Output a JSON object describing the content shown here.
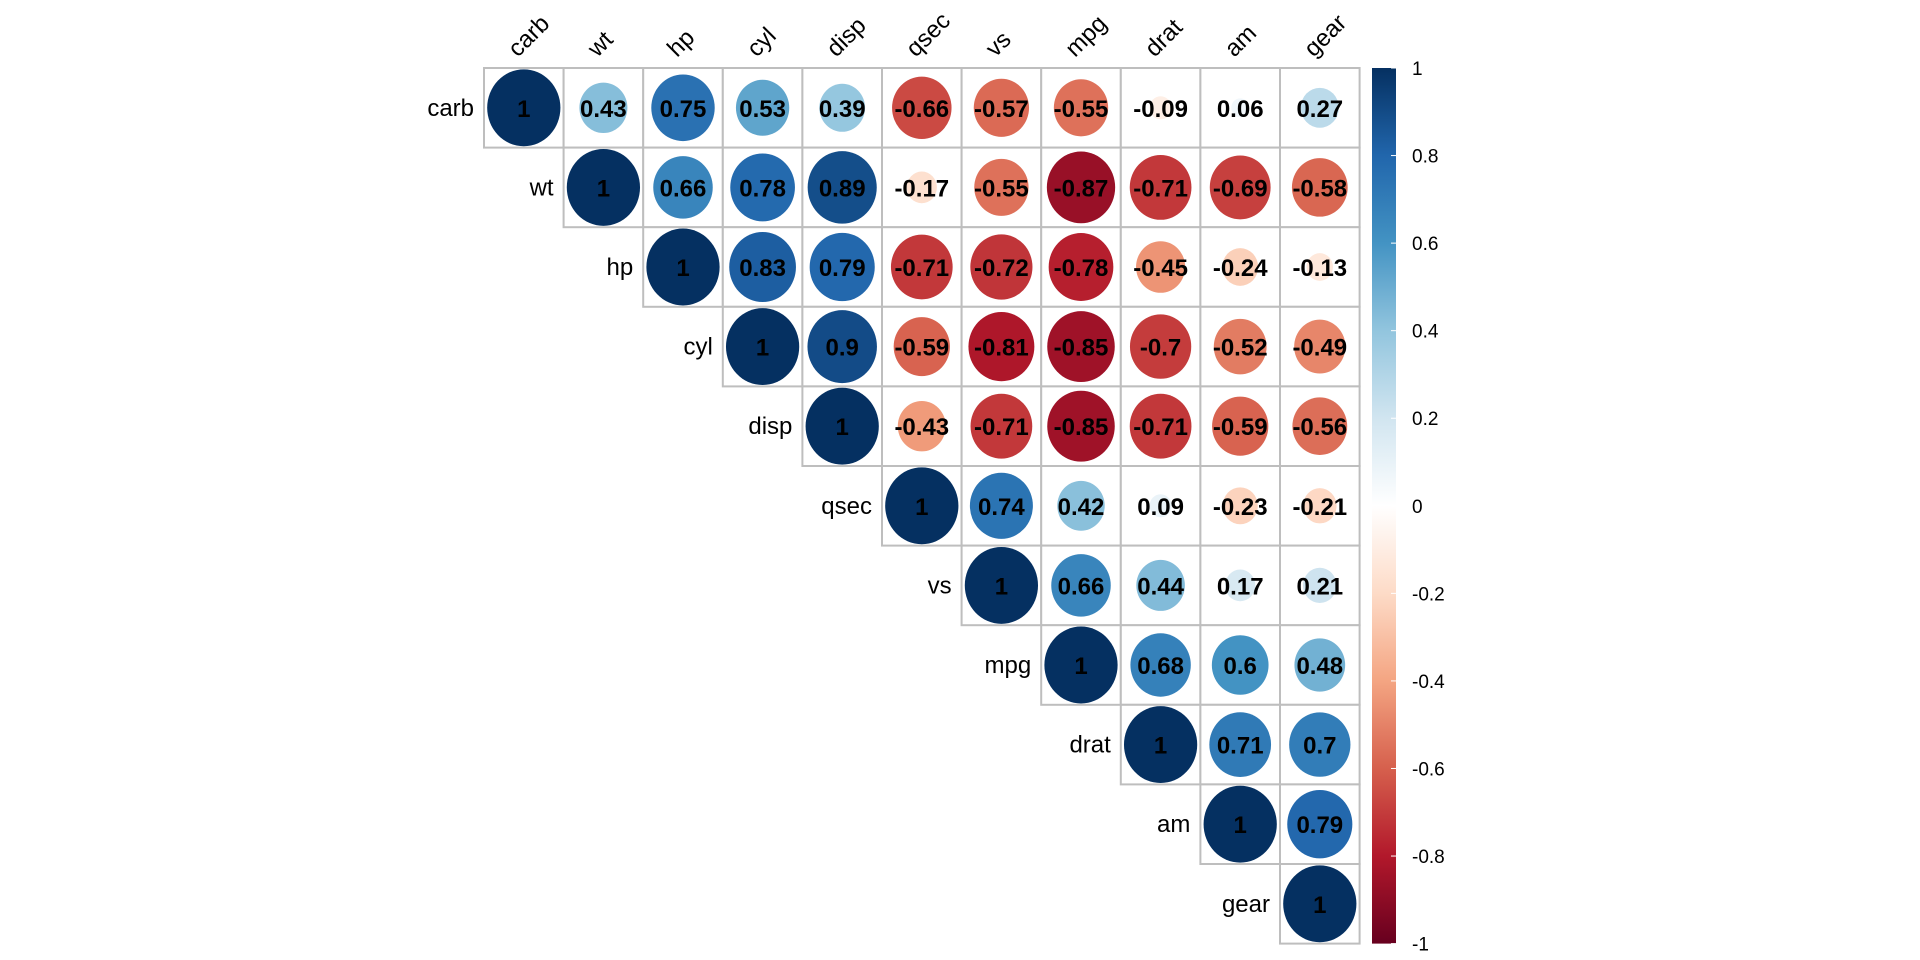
{
  "chart_data": {
    "type": "heatmap",
    "subtype": "corrplot-upper-circle",
    "variables": [
      "carb",
      "wt",
      "hp",
      "cyl",
      "disp",
      "qsec",
      "vs",
      "mpg",
      "drat",
      "am",
      "gear"
    ],
    "matrix_upper": [
      [
        1,
        0.43,
        0.75,
        0.53,
        0.39,
        -0.66,
        -0.57,
        -0.55,
        -0.09,
        0.06,
        0.27
      ],
      [
        1,
        0.66,
        0.78,
        0.89,
        -0.17,
        -0.55,
        -0.87,
        -0.71,
        -0.69,
        -0.58
      ],
      [
        1,
        0.83,
        0.79,
        -0.71,
        -0.72,
        -0.78,
        -0.45,
        -0.24,
        -0.13
      ],
      [
        1,
        0.9,
        -0.59,
        -0.81,
        -0.85,
        -0.7,
        -0.52,
        -0.49
      ],
      [
        1,
        -0.43,
        -0.71,
        -0.85,
        -0.71,
        -0.59,
        -0.56
      ],
      [
        1,
        0.74,
        0.42,
        0.09,
        -0.23,
        -0.21
      ],
      [
        1,
        0.66,
        0.44,
        0.17,
        0.21
      ],
      [
        1,
        0.68,
        0.6,
        0.48
      ],
      [
        1,
        0.71,
        0.7
      ],
      [
        1,
        0.79
      ],
      [
        1
      ]
    ],
    "colorbar": {
      "range": [
        -1,
        1
      ],
      "ticks": [
        "-1",
        "-0.8",
        "-0.6",
        "-0.4",
        "-0.2",
        "0",
        "0.2",
        "0.4",
        "0.6",
        "0.8",
        "1"
      ],
      "placement": "right"
    },
    "palette": [
      "#67001F",
      "#B2182B",
      "#D6604D",
      "#F4A582",
      "#FDDBC7",
      "#FFFFFF",
      "#D1E5F0",
      "#92C5DE",
      "#4393C3",
      "#2166AC",
      "#053061"
    ]
  }
}
